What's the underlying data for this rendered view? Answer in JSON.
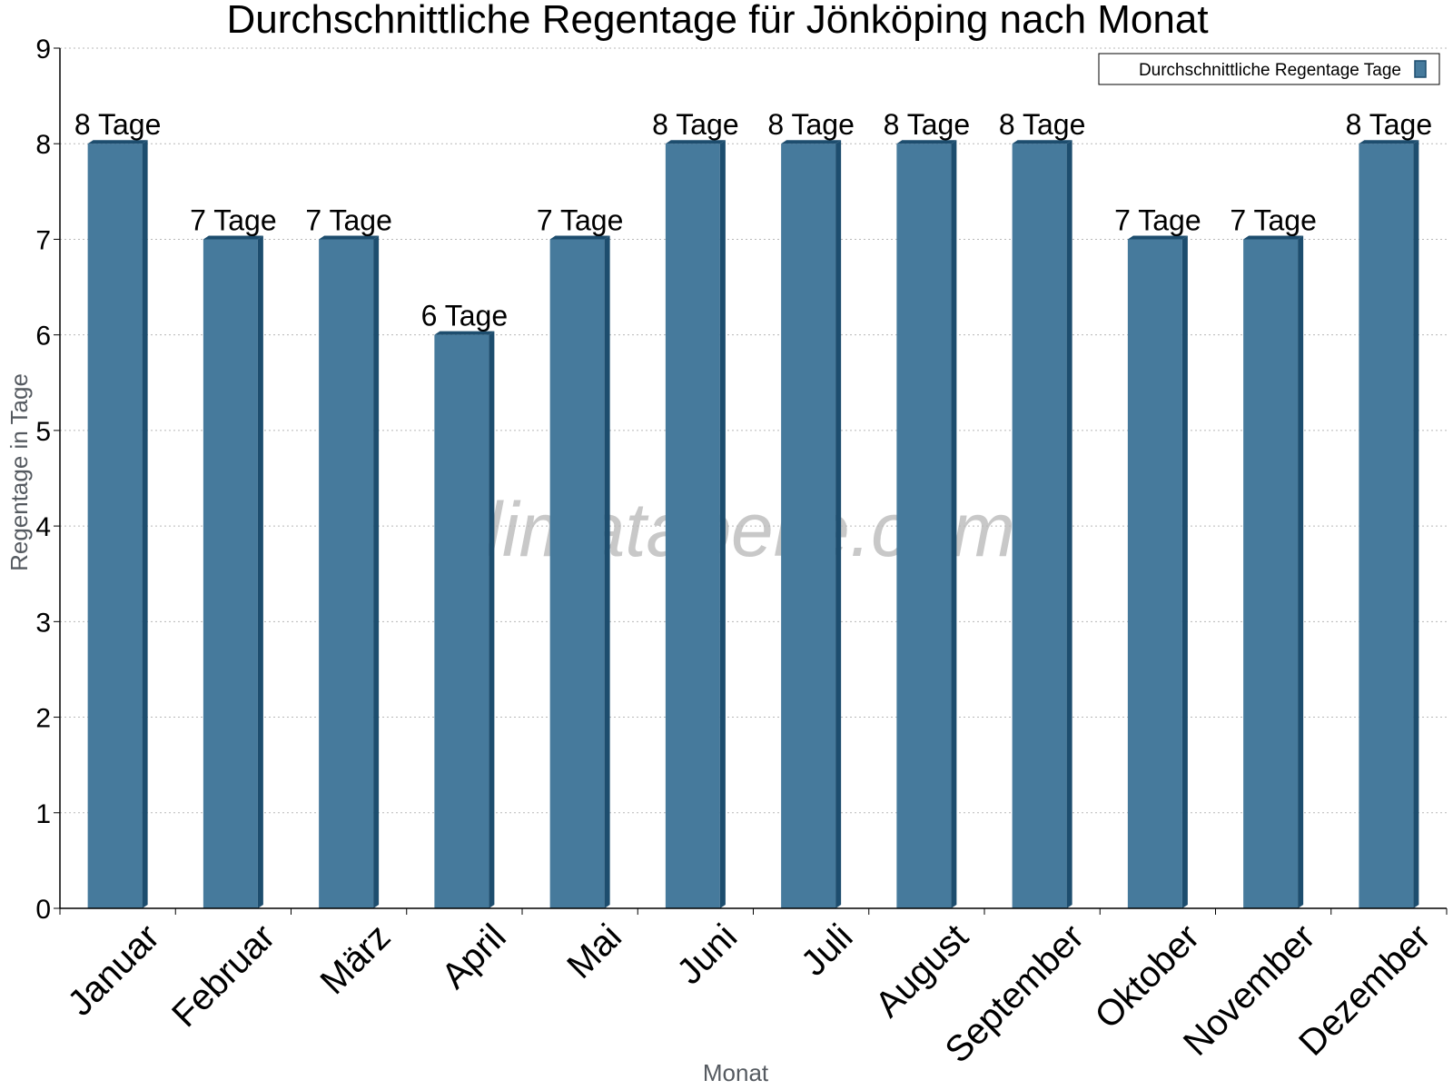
{
  "chart_data": {
    "type": "bar",
    "title": "Durchschnittliche Regentage für Jönköping nach Monat",
    "xlabel": "Monat",
    "ylabel": "Regentage in Tage",
    "ylim": [
      0,
      9
    ],
    "yticks": [
      0,
      1,
      2,
      3,
      4,
      5,
      6,
      7,
      8,
      9
    ],
    "grid": true,
    "legend_position": "top-right",
    "categories": [
      "Januar",
      "Februar",
      "März",
      "April",
      "Mai",
      "Juni",
      "Juli",
      "August",
      "September",
      "Oktober",
      "November",
      "Dezember"
    ],
    "series": [
      {
        "name": "Durchschnittliche Regentage Tage",
        "values": [
          8,
          7,
          7,
          6,
          7,
          8,
          8,
          8,
          8,
          7,
          7,
          8
        ],
        "data_labels": [
          "8 Tage",
          "7 Tage",
          "7 Tage",
          "6 Tage",
          "7 Tage",
          "8 Tage",
          "8 Tage",
          "8 Tage",
          "8 Tage",
          "7 Tage",
          "7 Tage",
          "8 Tage"
        ],
        "color": "#467a9c",
        "side_color": "#1d4d6e"
      }
    ],
    "watermark": "klimatabelle.com"
  }
}
